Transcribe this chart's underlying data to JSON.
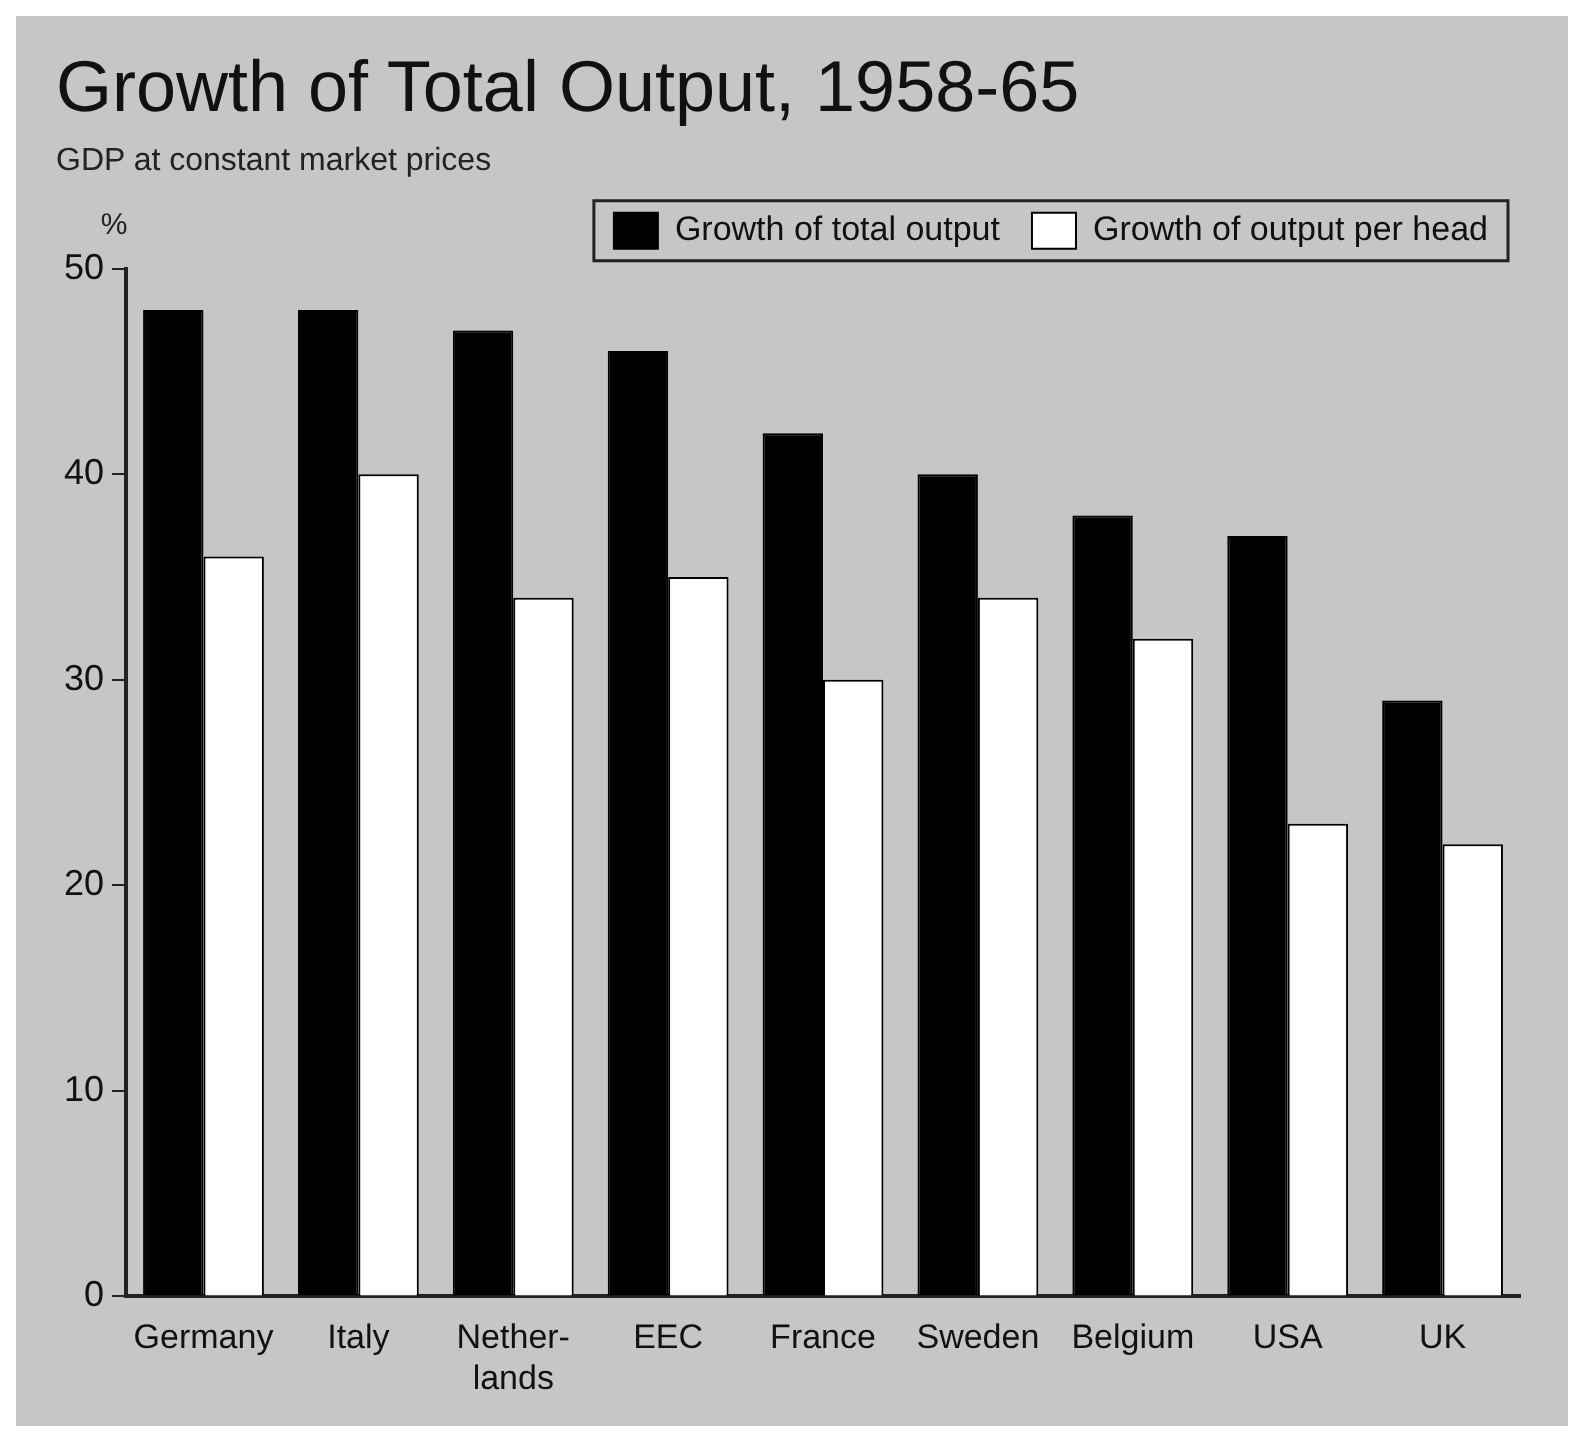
{
  "chart_data": {
    "type": "bar",
    "title": "Growth of Total Output, 1958-65",
    "subtitle": "GDP at constant market prices",
    "ylabel": "%",
    "categories": [
      "Germany",
      "Italy",
      "Nether-\nlands",
      "EEC",
      "France",
      "Sweden",
      "Belgium",
      "USA",
      "UK"
    ],
    "series": [
      {
        "name": "Growth of total output",
        "color": "#000000",
        "values": [
          48,
          48,
          47,
          46,
          42,
          40,
          38,
          37,
          29
        ]
      },
      {
        "name": "Growth of output per head",
        "color": "#ffffff",
        "values": [
          36,
          40,
          34,
          35,
          30,
          34,
          32,
          23,
          22
        ]
      }
    ],
    "ylim": [
      0,
      50
    ],
    "yticks": [
      0,
      10,
      20,
      30,
      40,
      50
    ],
    "grid": false,
    "legend": "top right"
  }
}
